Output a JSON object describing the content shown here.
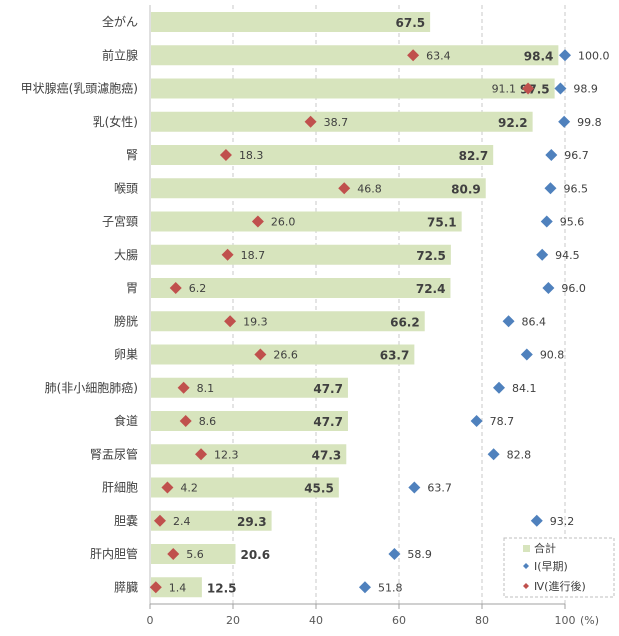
{
  "chart_data": {
    "type": "bar",
    "orientation": "horizontal",
    "categories": [
      "全がん",
      "前立腺",
      "甲状腺癌(乳頭濾胞癌)",
      "乳(女性)",
      "腎",
      "喉頭",
      "子宮頸",
      "大腸",
      "胃",
      "膀胱",
      "卵巣",
      "肺(非小細胞肺癌)",
      "食道",
      "腎盂尿管",
      "肝細胞",
      "胆嚢",
      "肝内胆管",
      "膵臓"
    ],
    "series": [
      {
        "name": "合計",
        "kind": "bar",
        "color": "#d7e4bd",
        "values": [
          67.5,
          98.4,
          97.5,
          92.2,
          82.7,
          80.9,
          75.1,
          72.5,
          72.4,
          66.2,
          63.7,
          47.7,
          47.7,
          47.3,
          45.5,
          29.3,
          20.6,
          12.5
        ]
      },
      {
        "name": "Ⅰ(早期)",
        "kind": "diamond",
        "color": "#4f81bd",
        "values": [
          null,
          100.0,
          98.9,
          99.8,
          96.7,
          96.5,
          95.6,
          94.5,
          96.0,
          86.4,
          90.8,
          84.1,
          78.7,
          82.8,
          63.7,
          93.2,
          58.9,
          51.8
        ]
      },
      {
        "name": "Ⅳ(進行後)",
        "kind": "diamond",
        "color": "#c0504d",
        "values": [
          null,
          63.4,
          91.1,
          38.7,
          18.3,
          46.8,
          26.0,
          18.7,
          6.2,
          19.3,
          26.6,
          8.1,
          8.6,
          12.3,
          4.2,
          2.4,
          5.6,
          1.4
        ]
      }
    ],
    "xlim": [
      0,
      100
    ],
    "xticks": [
      "0",
      "20",
      "40",
      "60",
      "80",
      "100"
    ],
    "xunit": "(%)",
    "grid": "vertical dashed",
    "legend": "bottom-right"
  }
}
